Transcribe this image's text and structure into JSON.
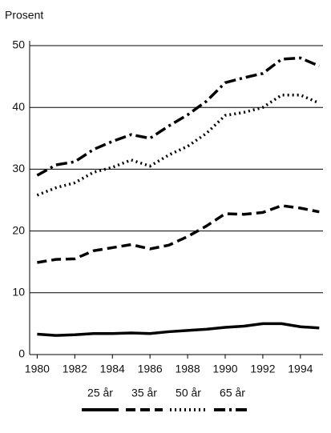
{
  "chart_data": {
    "type": "line",
    "y_label": "Prosent",
    "x": [
      1980,
      1981,
      1982,
      1983,
      1984,
      1985,
      1986,
      1987,
      1988,
      1989,
      1990,
      1991,
      1992,
      1993,
      1994,
      1995
    ],
    "series": [
      {
        "name": "25 år",
        "color": "#000000",
        "style": "solid",
        "values": [
          3.3,
          3.1,
          3.2,
          3.4,
          3.4,
          3.5,
          3.4,
          3.7,
          3.9,
          4.1,
          4.4,
          4.6,
          5.0,
          5.0,
          4.5,
          4.3
        ]
      },
      {
        "name": "35 år",
        "color": "#000000",
        "style": "dashed",
        "values": [
          14.9,
          15.4,
          15.5,
          16.8,
          17.3,
          17.8,
          17.1,
          17.7,
          19.1,
          20.8,
          22.8,
          22.7,
          23.0,
          24.1,
          23.7,
          23.1
        ]
      },
      {
        "name": "50 år",
        "color": "#000000",
        "style": "dotted",
        "values": [
          25.8,
          27.0,
          27.8,
          29.5,
          30.3,
          31.5,
          30.5,
          32.3,
          33.7,
          35.8,
          38.7,
          39.2,
          40.0,
          42.0,
          42.0,
          40.7
        ]
      },
      {
        "name": "65 år",
        "color": "#000000",
        "style": "dashdot",
        "values": [
          29.0,
          30.7,
          31.2,
          33.2,
          34.5,
          35.6,
          35.0,
          37.0,
          38.8,
          41.0,
          44.0,
          44.8,
          45.5,
          47.8,
          48.0,
          46.7
        ]
      }
    ],
    "xlim": [
      1979.6,
      1995.2
    ],
    "xticks": [
      1980,
      1982,
      1984,
      1986,
      1988,
      1990,
      1992,
      1994
    ],
    "ylim": [
      0,
      50
    ],
    "yticks": [
      0,
      10,
      20,
      30,
      40,
      50
    ],
    "grid": true,
    "legend": "bottom"
  }
}
